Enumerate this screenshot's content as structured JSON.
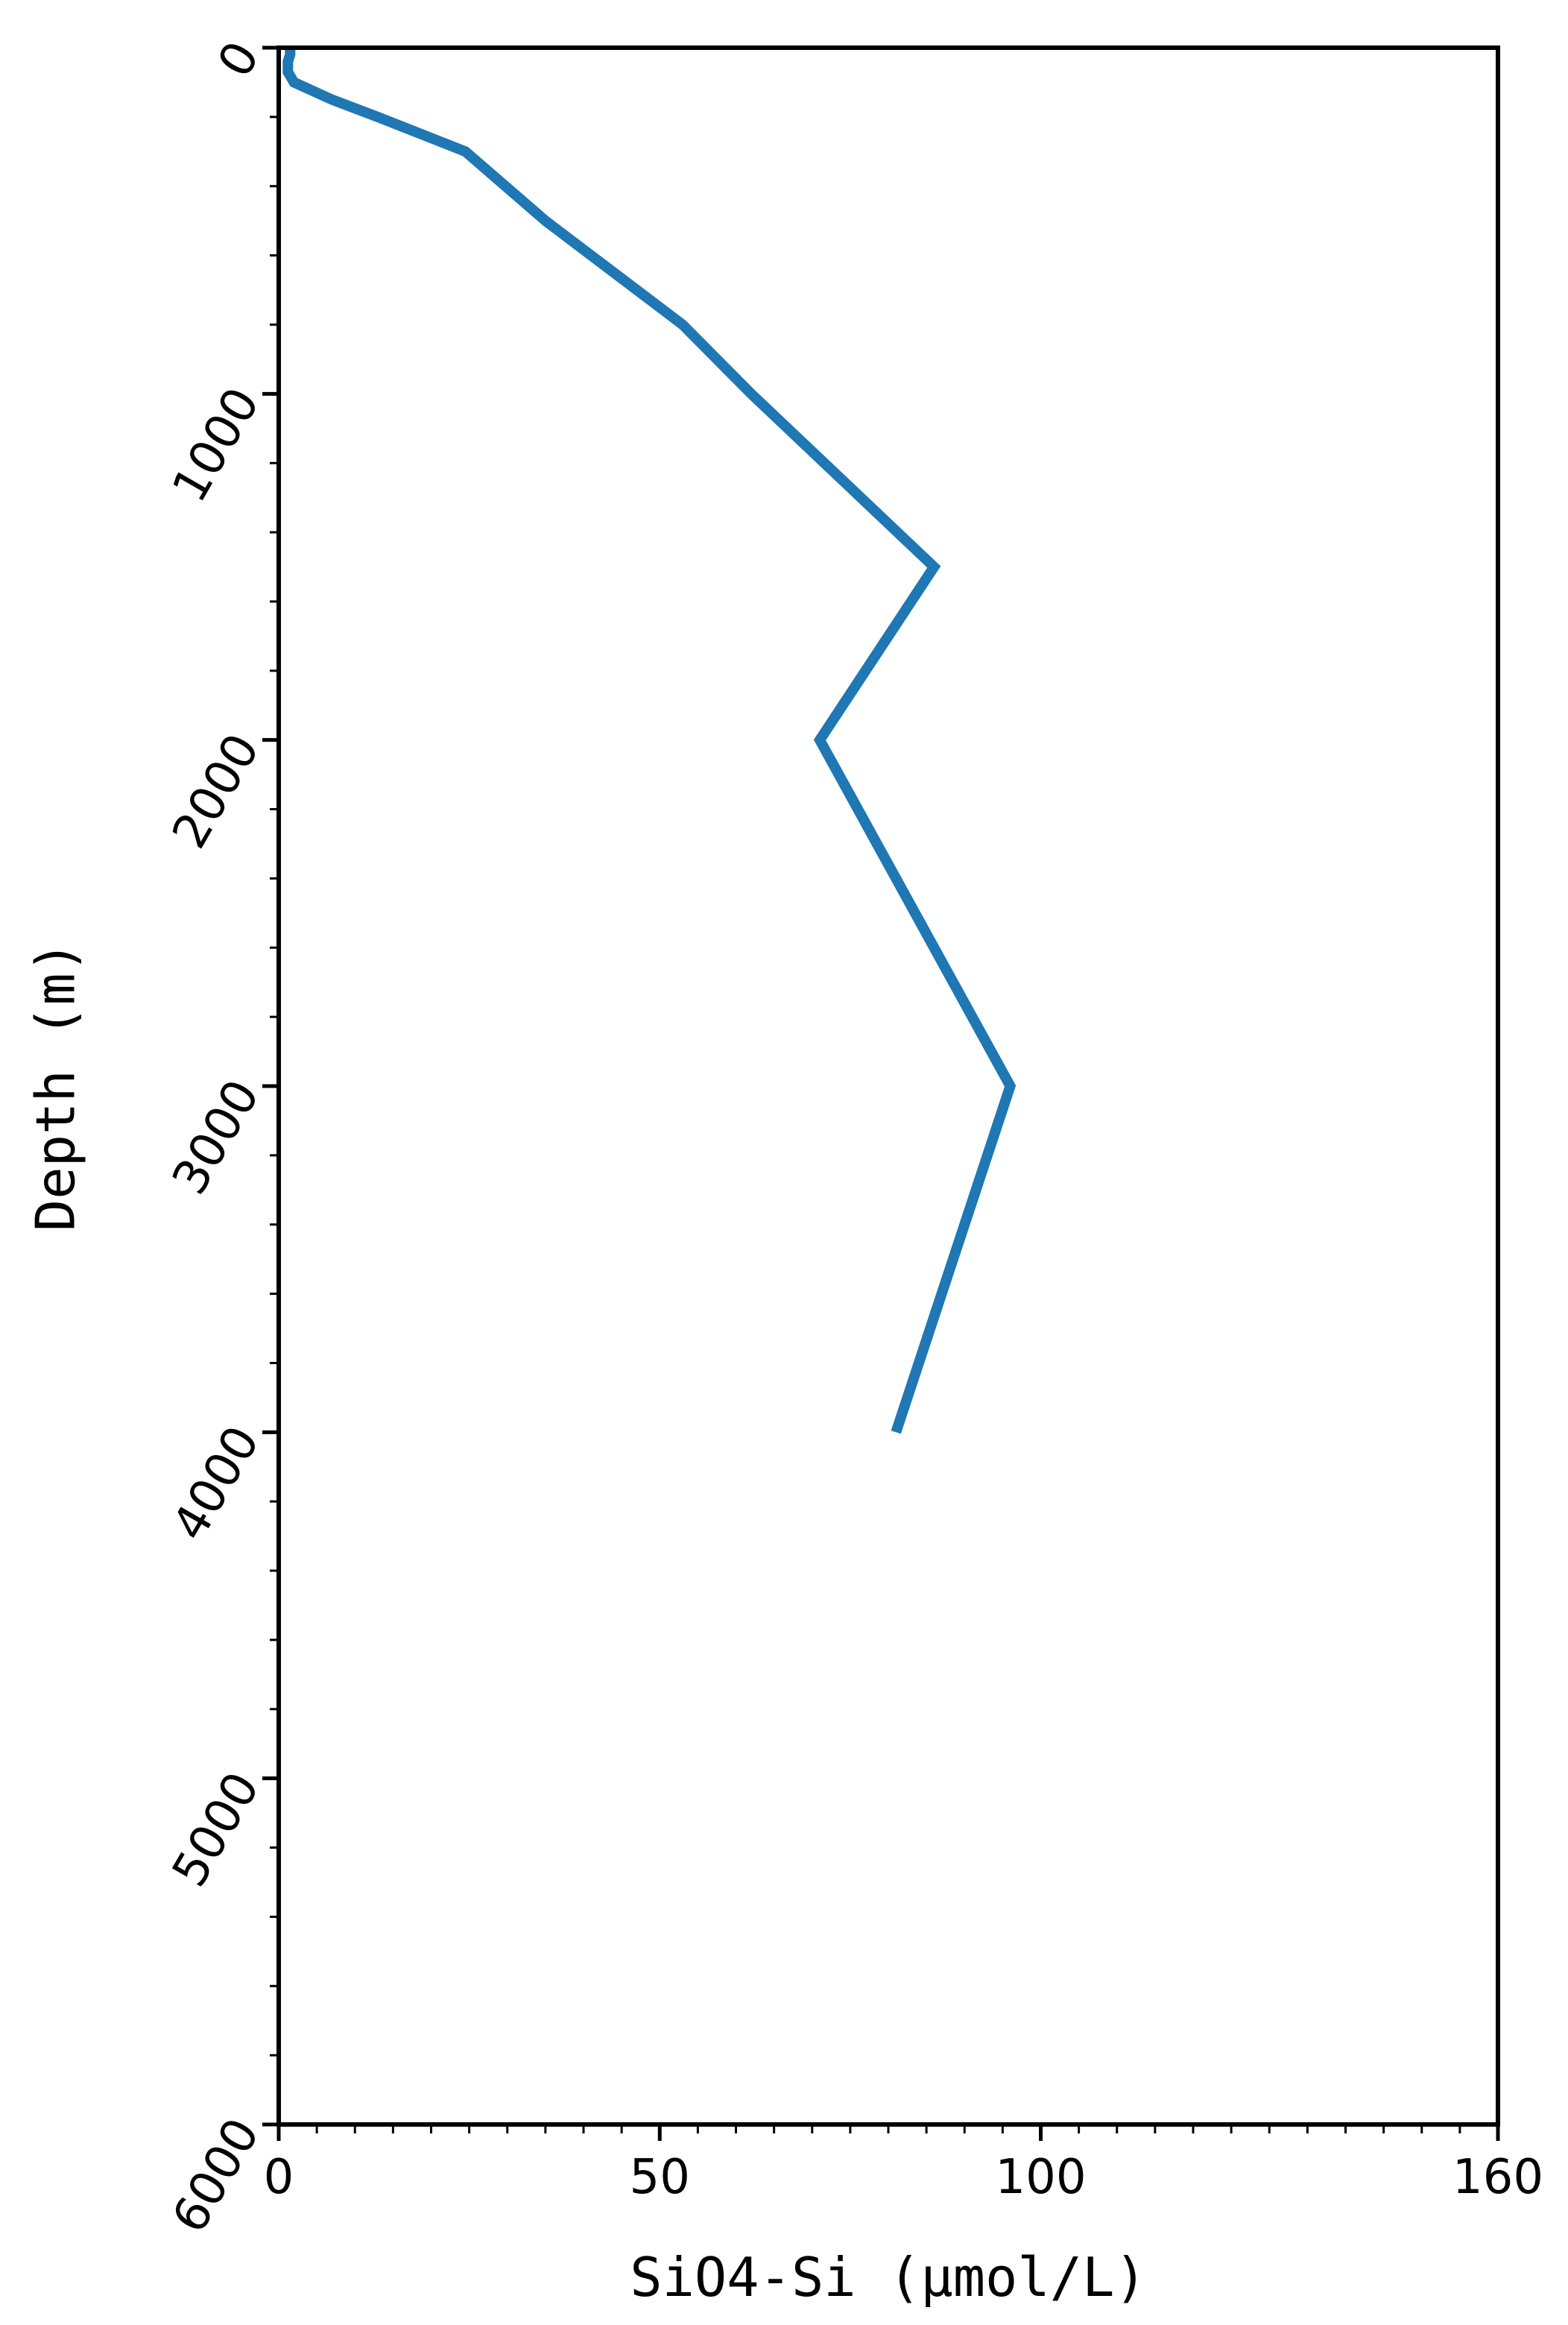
{
  "chart_data": {
    "type": "line",
    "title": "",
    "xlabel": "SiO4-Si (μmol/L)",
    "ylabel": "Depth (m)",
    "xlim": [
      0,
      160
    ],
    "ylim": [
      6000,
      0
    ],
    "y_inverted": true,
    "x_ticks": [
      0,
      50,
      100,
      160
    ],
    "x_tick_labels": [
      "0",
      "50",
      "100",
      "160"
    ],
    "y_ticks": [
      0,
      1000,
      2000,
      3000,
      4000,
      5000,
      6000
    ],
    "y_tick_labels": [
      "0",
      "1000",
      "2000",
      "3000",
      "4000",
      "5000",
      "6000"
    ],
    "grid": false,
    "legend": "none",
    "series": [
      {
        "color": "#1f77b4",
        "x": [
          1.5,
          1.5,
          1.2,
          1.2,
          2.0,
          7.0,
          13.0,
          24.5,
          35.0,
          53.0,
          62.0,
          86.0,
          71.0,
          96.0,
          81.0
        ],
        "y": [
          0,
          20,
          40,
          70,
          100,
          150,
          200,
          300,
          500,
          800,
          1000,
          1500,
          2000,
          3000,
          4000
        ]
      }
    ]
  }
}
